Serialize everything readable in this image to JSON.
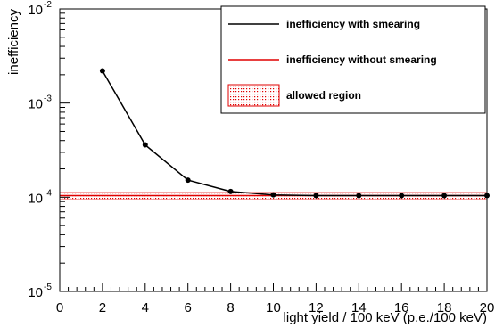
{
  "chart_data": {
    "type": "line",
    "xlabel": "light yield / 100 keV (p.e./100 keV)",
    "ylabel": "inefficiency",
    "xlim": [
      0,
      20
    ],
    "ylim": [
      1e-05,
      0.01
    ],
    "yscale": "log",
    "grid": false,
    "legend_position": "top-right",
    "x_ticks": [
      0,
      2,
      4,
      6,
      8,
      10,
      12,
      14,
      16,
      18,
      20
    ],
    "y_ticks": [
      {
        "base": "10",
        "exp": "-5",
        "value": 1e-05
      },
      {
        "base": "10",
        "exp": "-4",
        "value": 0.0001
      },
      {
        "base": "10",
        "exp": "-3",
        "value": 0.001
      },
      {
        "base": "10",
        "exp": "-2",
        "value": 0.01
      }
    ],
    "series": [
      {
        "name": "inefficiency with smearing",
        "color": "#000000",
        "x": [
          2,
          4,
          6,
          8,
          10,
          12,
          14,
          16,
          18,
          20
        ],
        "values": [
          0.0022,
          0.00036,
          0.000152,
          0.000115,
          0.000106,
          0.000104,
          0.000104,
          0.000104,
          0.000104,
          0.000104
        ]
      },
      {
        "name": "inefficiency without smearing",
        "color": "#e00000",
        "constant": 0.000104
      }
    ],
    "band": {
      "name": "allowed region",
      "color": "#e00000",
      "lower": 9.55e-05,
      "upper": 0.000113
    }
  }
}
